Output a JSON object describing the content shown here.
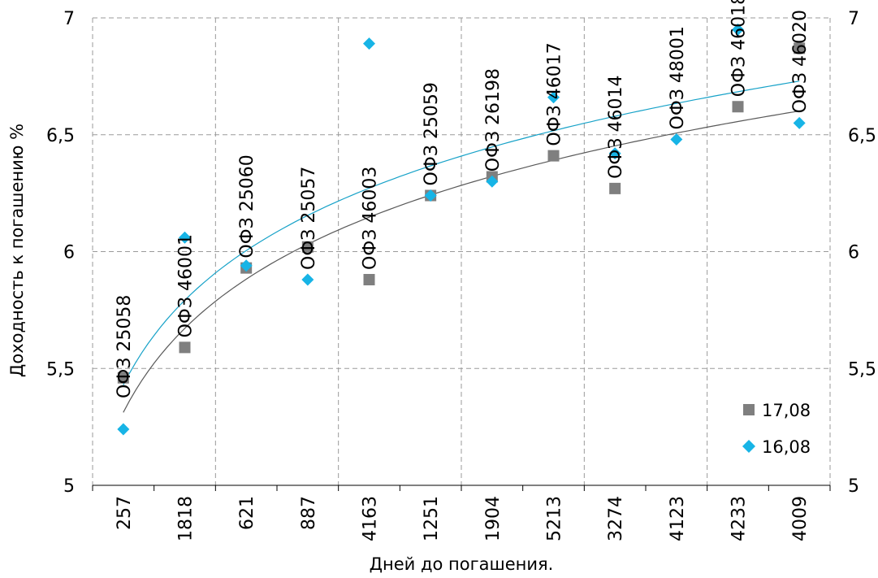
{
  "chart_data": {
    "type": "scatter",
    "title": "",
    "xlabel": "Дней до погашения.",
    "ylabel": "Доходность к погашению %",
    "categories": [
      "257",
      "1818",
      "621",
      "887",
      "4163",
      "1251",
      "1904",
      "5213",
      "3274",
      "4123",
      "4233",
      "4009"
    ],
    "point_labels": [
      "ОФЗ 25058",
      "ОФЗ 46001",
      "ОФЗ 25060",
      "ОФЗ 25057",
      "ОФЗ 46003",
      "ОФЗ 25059",
      "ОФЗ 26198",
      "ОФЗ 46017",
      "ОФЗ 46014",
      "ОФЗ 48001",
      "ОФЗ 46018",
      "ОФЗ 46020"
    ],
    "ylim": [
      5,
      7
    ],
    "yticks": [
      "5",
      "5,5",
      "6",
      "6,5",
      "7"
    ],
    "grid": true,
    "legend_position": "bottom-right",
    "series": [
      {
        "name": "17,08",
        "marker": "square",
        "color": "#7f7f7f",
        "trend_color": "#595959",
        "values": [
          5.46,
          5.59,
          5.93,
          6.02,
          5.88,
          6.24,
          6.32,
          6.41,
          6.27,
          null,
          6.62,
          6.87
        ]
      },
      {
        "name": "16,08",
        "marker": "diamond",
        "color": "#17b4e6",
        "trend_color": "#17a2c8",
        "values": [
          5.24,
          6.06,
          5.94,
          5.88,
          6.89,
          6.24,
          6.3,
          6.66,
          6.42,
          6.48,
          6.95,
          6.55
        ]
      }
    ]
  }
}
